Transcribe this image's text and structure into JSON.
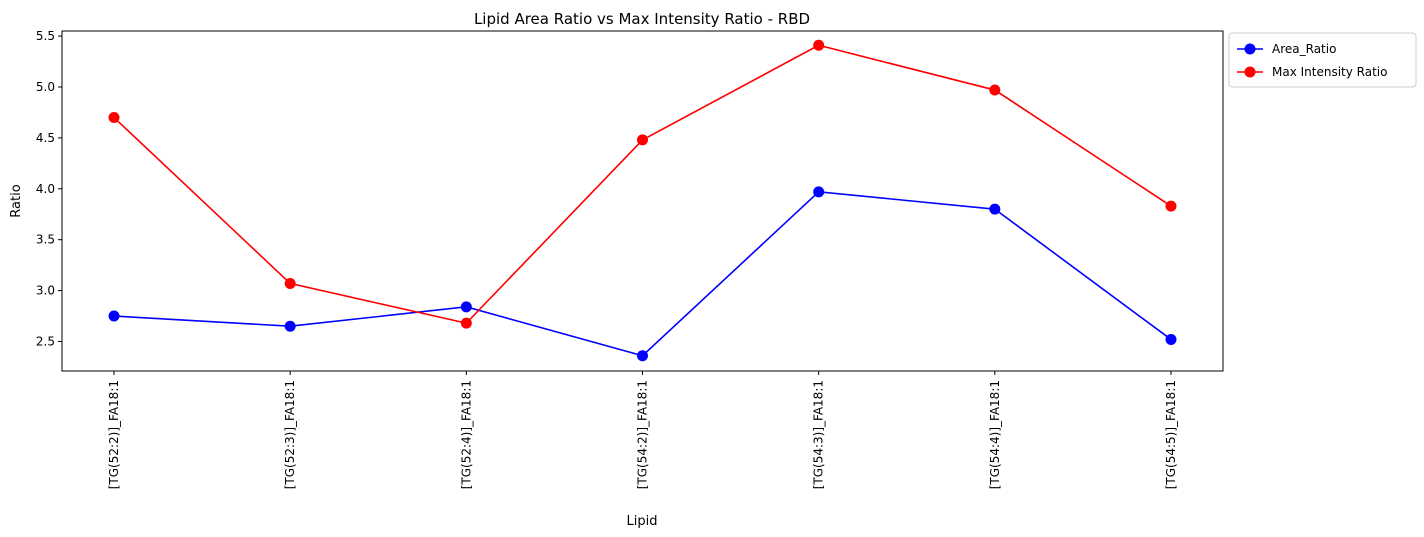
{
  "chart_data": {
    "type": "line",
    "title": "Lipid Area Ratio vs Max Intensity Ratio - RBD",
    "xlabel": "Lipid",
    "ylabel": "Ratio",
    "categories": [
      "[TG(52:2)]_FA18:1",
      "[TG(52:3)]_FA18:1",
      "[TG(52:4)]_FA18:1",
      "[TG(54:2)]_FA18:1",
      "[TG(54:3)]_FA18:1",
      "[TG(54:4)]_FA18:1",
      "[TG(54:5)]_FA18:1"
    ],
    "ylim": [
      2.21,
      5.55
    ],
    "yticks": [
      2.5,
      3.0,
      3.5,
      4.0,
      4.5,
      5.0,
      5.5
    ],
    "ytick_labels": [
      "2.5",
      "3.0",
      "3.5",
      "4.0",
      "4.5",
      "5.0",
      "5.5"
    ],
    "grid": false,
    "legend_position": "outside-top-right",
    "series": [
      {
        "name": "Area_Ratio",
        "color": "#0000ff",
        "values": [
          2.75,
          2.65,
          2.84,
          2.36,
          3.97,
          3.8,
          2.52
        ]
      },
      {
        "name": "Max Intensity Ratio",
        "color": "#ff0000",
        "values": [
          4.7,
          3.07,
          2.68,
          4.48,
          5.41,
          4.97,
          3.83
        ]
      }
    ]
  }
}
